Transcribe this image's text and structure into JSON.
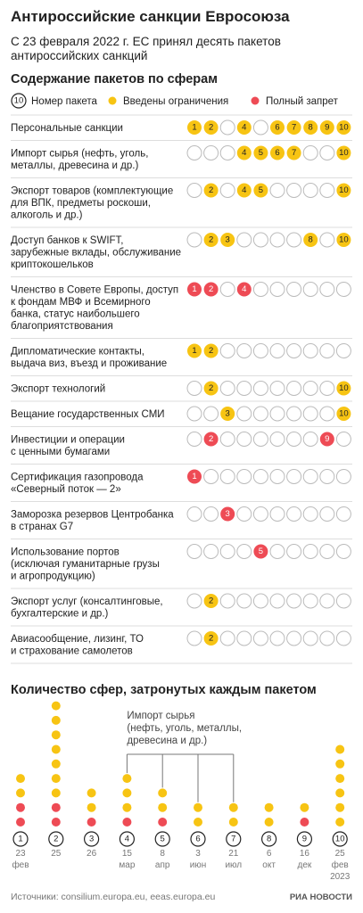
{
  "header": {
    "title": "Антироссийские санкции Евросоюза",
    "subtitle": [
      "С 23 февраля 2022 г. ЕС принял десять пакетов",
      "антироссийских санкций"
    ]
  },
  "table": {
    "title": "Содержание пакетов по сферам",
    "legend": {
      "number_sample": "10",
      "number": "Номер пакета",
      "yellow": "Введены ограничения",
      "red": "Полный запрет"
    },
    "yellow_color": "#f7c413",
    "red_color": "#ee4b55",
    "rows": [
      {
        "label": [
          "Персональные санкции"
        ],
        "yellow": [
          1,
          2,
          4,
          6,
          7,
          8,
          9,
          10
        ],
        "red": []
      },
      {
        "label": [
          "Импорт сырья (нефть, уголь,",
          "металлы, древесина и др.)"
        ],
        "yellow": [
          4,
          5,
          6,
          7,
          10
        ],
        "red": []
      },
      {
        "label": [
          "Экспорт товаров (комплектующие",
          "для ВПК, предметы роскоши,",
          "алкоголь и др.)"
        ],
        "yellow": [
          2,
          4,
          5,
          10
        ],
        "red": []
      },
      {
        "label": [
          "Доступ банков к SWIFT,",
          "зарубежные вклады, обслуживание",
          "криптокошельков"
        ],
        "yellow": [
          2,
          3,
          8,
          10
        ],
        "red": []
      },
      {
        "label": [
          "Членство в Совете Европы, доступ",
          "к фондам МВФ и Всемирного",
          "банка, статус наибольшего",
          "благоприятствования"
        ],
        "yellow": [],
        "red": [
          1,
          2,
          4
        ]
      },
      {
        "label": [
          "Дипломатические контакты,",
          "выдача виз, въезд и проживание"
        ],
        "yellow": [
          1,
          2
        ],
        "red": []
      },
      {
        "label": [
          "Экспорт технологий"
        ],
        "yellow": [
          2,
          10
        ],
        "red": []
      },
      {
        "label": [
          "Вещание государственных СМИ"
        ],
        "yellow": [
          3,
          10
        ],
        "red": []
      },
      {
        "label": [
          "Инвестиции и операции",
          "с ценными бумагами"
        ],
        "yellow": [],
        "red": [
          2,
          9
        ]
      },
      {
        "label": [
          "Сертификация газопровода",
          "«Северный поток — 2»"
        ],
        "yellow": [],
        "red": [
          1
        ]
      },
      {
        "label": [
          "Заморозка резервов Центробанка",
          "в странах G7"
        ],
        "yellow": [],
        "red": [
          3
        ]
      },
      {
        "label": [
          "Использование портов",
          "(исключая гуманитарные грузы",
          "и агропродукцию)"
        ],
        "yellow": [],
        "red": [
          5
        ]
      },
      {
        "label": [
          "Экспорт услуг (консалтинговые,",
          "бухгалтерские и др.)"
        ],
        "yellow": [
          2
        ],
        "red": []
      },
      {
        "label": [
          "Авиасообщение, лизинг, ТО",
          "и страхование самолетов"
        ],
        "yellow": [
          2
        ],
        "red": []
      }
    ]
  },
  "chart_data": {
    "type": "dot-stack",
    "title": "Количество сфер, затронутых каждым пакетом",
    "categories": [
      "1",
      "2",
      "3",
      "4",
      "5",
      "6",
      "7",
      "8",
      "9",
      "10"
    ],
    "dates": [
      [
        "23",
        "фев"
      ],
      [
        "25"
      ],
      [
        "26"
      ],
      [
        "15",
        "мар"
      ],
      [
        "8",
        "апр"
      ],
      [
        "3",
        "июн"
      ],
      [
        "21",
        "июл"
      ],
      [
        "6",
        "окт"
      ],
      [
        "16",
        "дек"
      ],
      [
        "25",
        "фев",
        "2023"
      ]
    ],
    "yellow": [
      2,
      7,
      2,
      3,
      2,
      2,
      2,
      2,
      1,
      6
    ],
    "red": [
      2,
      2,
      1,
      1,
      1,
      0,
      0,
      0,
      1,
      0
    ],
    "annotation": [
      "Импорт сырья",
      "(нефть, уголь, металлы,",
      "древесина и др.)"
    ]
  },
  "footer": {
    "source": "Источники: consilium.europa.eu, eeas.europa.eu",
    "logo": "РИА НОВОСТИ"
  }
}
